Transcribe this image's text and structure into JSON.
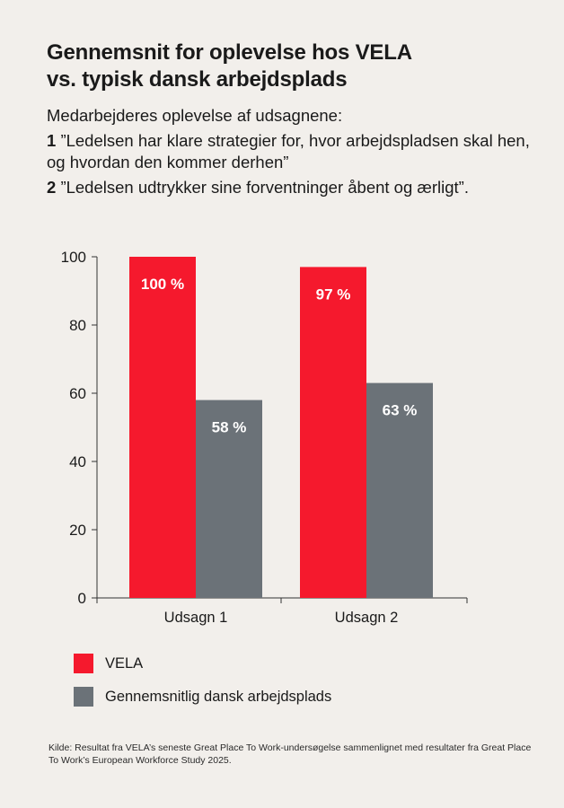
{
  "title_line1": "Gennemsnit for oplevelse hos VELA",
  "title_line2": "vs. typisk dansk arbejdsplads",
  "intro": "Medarbejderes oplevelse af udsagnene:",
  "statements": [
    {
      "num": "1",
      "text": "”Ledelsen har klare strategier for, hvor arbejdspladsen skal hen, og hvordan den kommer derhen”"
    },
    {
      "num": "2",
      "text": "”Ledelsen udtrykker sine forventninger åbent og ærligt”."
    }
  ],
  "source": "Kilde: Resultat fra VELA’s seneste Great Place To Work-undersøgelse sammenlignet med resultater fra Great Place To Work’s European Workforce Study 2025.",
  "colors": {
    "vela": "#f5192d",
    "typical": "#6b7278",
    "background": "#f2efeb"
  },
  "chart_data": {
    "type": "bar",
    "categories": [
      "Udsagn 1",
      "Udsagn 2"
    ],
    "series": [
      {
        "name": "VELA",
        "values": [
          100,
          97
        ],
        "labels": [
          "100 %",
          "97 %"
        ],
        "color": "#f5192d"
      },
      {
        "name": "Gennemsnitlig dansk arbejdsplads",
        "values": [
          58,
          63
        ],
        "labels": [
          "58 %",
          "63 %"
        ],
        "color": "#6b7278"
      }
    ],
    "ylim": [
      0,
      100
    ],
    "yticks": [
      "0",
      "20",
      "40",
      "60",
      "80",
      "100"
    ],
    "grid": false,
    "legend_position": "bottom-left"
  }
}
